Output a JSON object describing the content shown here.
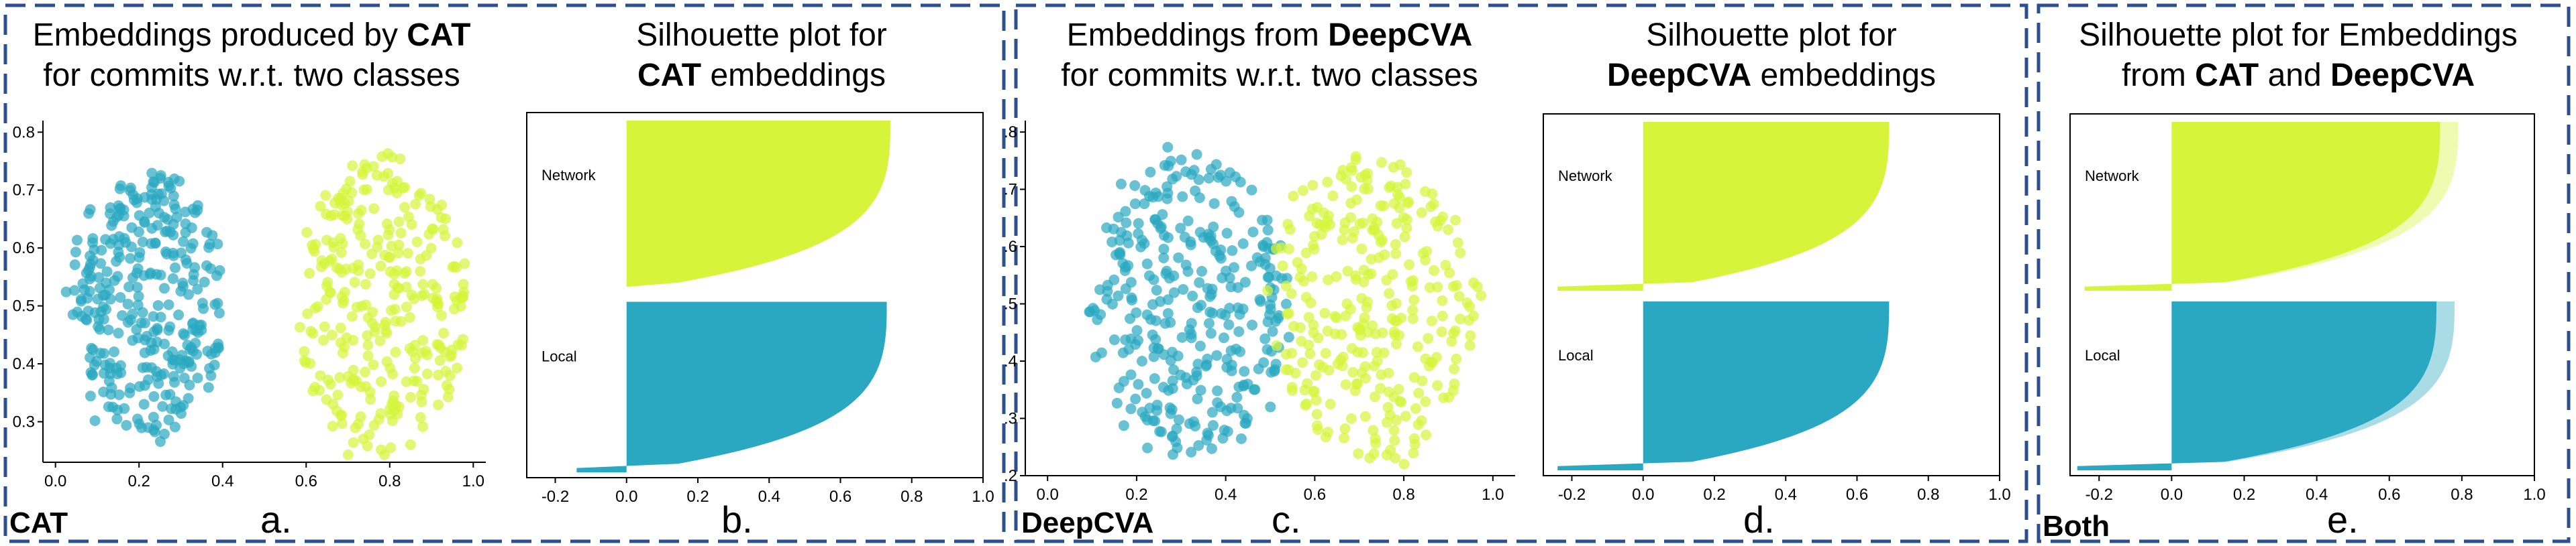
{
  "colors": {
    "teal": "#2AA8C1",
    "lime": "#D6F53A",
    "frame": "#2E4F8F",
    "axis": "#000000"
  },
  "panels": [
    {
      "title_pre": "Embeddings produced by ",
      "title_bold": "CAT",
      "title_line2": "for commits w.r.t. two classes",
      "tag": "CAT",
      "letter": "a."
    },
    {
      "title_line1": "Silhouette plot for",
      "title_bold": "CAT",
      "title_post": " embeddings",
      "letter": "b."
    },
    {
      "title_pre": "Embeddings from ",
      "title_bold": "DeepCVA",
      "title_line2": "for commits w.r.t. two classes",
      "tag": "DeepCVA",
      "letter": "c."
    },
    {
      "title_line1": "Silhouette plot for",
      "title_bold": "DeepCVA",
      "title_post": " embeddings",
      "letter": "d."
    },
    {
      "title_line1": "Silhouette plot for Embeddings",
      "title_pre2": "from ",
      "title_bold_a": "CAT",
      "title_mid": " and ",
      "title_bold_b": "DeepCVA",
      "tag": "Both",
      "letter": "e."
    }
  ],
  "chart_data": [
    {
      "type": "scatter",
      "x_ticks": [
        "0.0",
        "0.2",
        "0.4",
        "0.6",
        "0.8",
        "1.0"
      ],
      "y_ticks": [
        "0.3",
        "0.4",
        "0.5",
        "0.6",
        "0.7",
        "0.8"
      ],
      "xlim": [
        -0.03,
        1.03
      ],
      "ylim": [
        0.23,
        0.82
      ],
      "clusters": [
        {
          "name": "Local",
          "color": "#2AA8C1",
          "cx": 0.22,
          "cy": 0.5,
          "rx": 0.18,
          "ry": 0.23,
          "n": 330
        },
        {
          "name": "Network",
          "color": "#D6F53A",
          "cx": 0.78,
          "cy": 0.5,
          "rx": 0.2,
          "ry": 0.26,
          "n": 300
        }
      ]
    },
    {
      "type": "silhouette",
      "x_ticks": [
        "-0.2",
        "0.0",
        "0.2",
        "0.4",
        "0.6",
        "0.8",
        "1.0"
      ],
      "xlim": [
        -0.28,
        1.0
      ],
      "labels": [
        "Network",
        "Local"
      ],
      "series": [
        {
          "name": "Network",
          "max": 0.74,
          "min": 0.0
        },
        {
          "name": "Local",
          "max": 0.73,
          "min": -0.14
        }
      ]
    },
    {
      "type": "scatter",
      "x_ticks": [
        "0.0",
        "0.2",
        "0.4",
        "0.6",
        "0.8",
        "1.0"
      ],
      "y_ticks": [
        ".2",
        ".3",
        ".4",
        ".5",
        ".6",
        ".7",
        ".8"
      ],
      "xlim": [
        -0.05,
        1.05
      ],
      "ylim": [
        0.2,
        0.82
      ],
      "clusters": [
        {
          "name": "Local",
          "color": "#2AA8C1",
          "cx": 0.32,
          "cy": 0.5,
          "rx": 0.22,
          "ry": 0.27,
          "n": 330
        },
        {
          "name": "Network",
          "color": "#D6F53A",
          "cx": 0.73,
          "cy": 0.5,
          "rx": 0.23,
          "ry": 0.27,
          "n": 300
        }
      ]
    },
    {
      "type": "silhouette",
      "x_ticks": [
        "-0.2",
        "0.0",
        "0.2",
        "0.4",
        "0.6",
        "0.8",
        "1.0"
      ],
      "xlim": [
        -0.28,
        1.0
      ],
      "labels": [
        "Network",
        "Local"
      ],
      "series": [
        {
          "name": "Network",
          "max": 0.69,
          "min": -0.24
        },
        {
          "name": "Local",
          "max": 0.69,
          "min": -0.24
        }
      ]
    },
    {
      "type": "silhouette",
      "x_ticks": [
        "-0.2",
        "0.0",
        "0.2",
        "0.4",
        "0.6",
        "0.8",
        "1.0"
      ],
      "xlim": [
        -0.28,
        1.0
      ],
      "labels": [
        "Network",
        "Local"
      ],
      "series": [
        {
          "name": "Network",
          "max": 0.74,
          "min": -0.24,
          "overlay_max": 0.79
        },
        {
          "name": "Local",
          "max": 0.73,
          "min": -0.26,
          "overlay_max": 0.78
        }
      ]
    }
  ]
}
